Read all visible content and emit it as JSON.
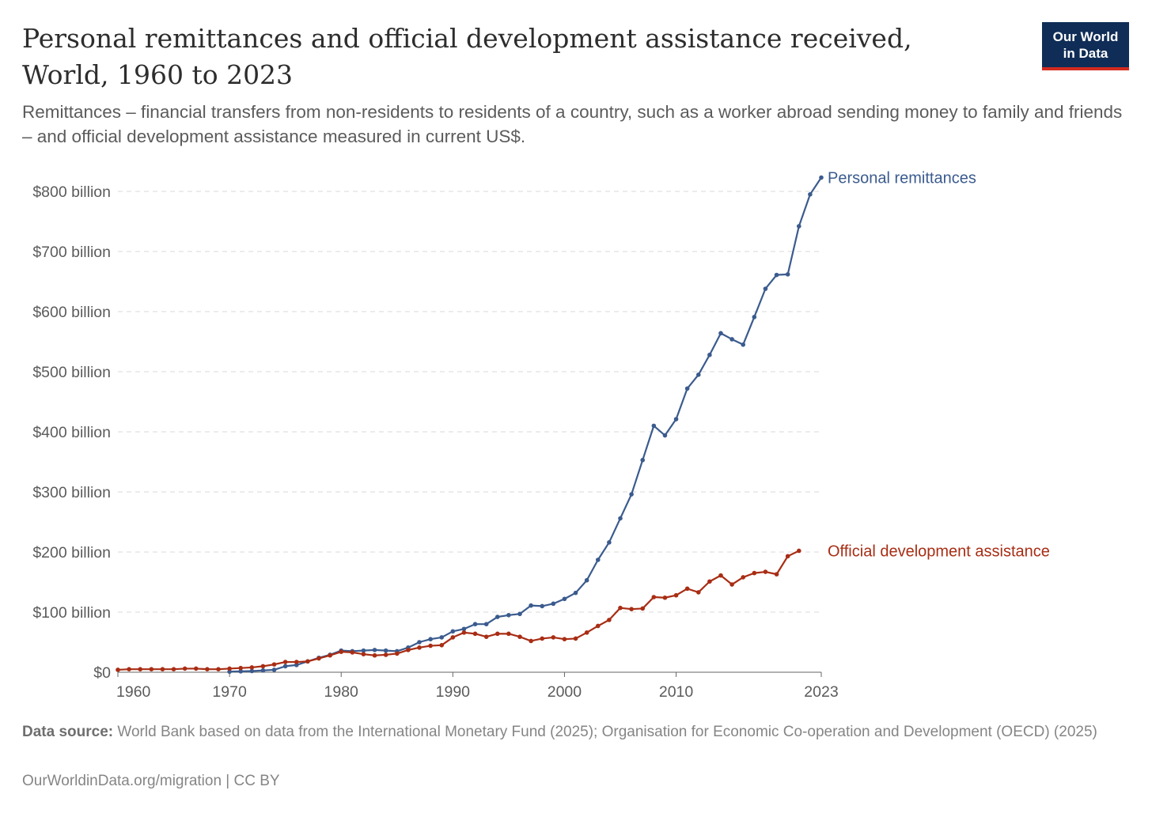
{
  "header": {
    "title": "Personal remittances and official development assistance received, World, 1960 to 2023",
    "subtitle": "Remittances – financial transfers from non-residents to residents of a country, such as a worker abroad sending money to family and friends – and official development assistance measured in current US$.",
    "logo_line1": "Our World",
    "logo_line2": "in Data"
  },
  "footer": {
    "source_label": "Data source:",
    "source_text": "World Bank based on data from the International Monetary Fund (2025); Organisation for Economic Co-operation and Development (OECD) (2025)",
    "url_license": "OurWorldinData.org/migration | CC BY"
  },
  "colors": {
    "remittances": "#3b5b8e",
    "oda": "#a82d14",
    "grid": "#d9d9d9",
    "axis": "#666666",
    "brand": "#0f2d56",
    "brand_accent": "#d42b21"
  },
  "chart_data": {
    "type": "line",
    "title": "Personal remittances and official development assistance received, World, 1960 to 2023",
    "xlabel": "",
    "ylabel": "",
    "x_ticks": [
      1960,
      1970,
      1980,
      1990,
      2000,
      2010,
      2023
    ],
    "y_ticks": [
      0,
      100,
      200,
      300,
      400,
      500,
      600,
      700,
      800
    ],
    "y_tick_labels": [
      "$0",
      "$100 billion",
      "$200 billion",
      "$300 billion",
      "$400 billion",
      "$500 billion",
      "$600 billion",
      "$700 billion",
      "$800 billion"
    ],
    "xlim": [
      1960,
      2023
    ],
    "ylim": [
      0,
      800
    ],
    "units": "billion current US$",
    "grid": "horizontal dashed",
    "legend": "inline labels at line ends",
    "series": [
      {
        "name": "Personal remittances",
        "color": "#3b5b8e",
        "x": [
          1970,
          1971,
          1972,
          1973,
          1974,
          1975,
          1976,
          1977,
          1978,
          1979,
          1980,
          1981,
          1982,
          1983,
          1984,
          1985,
          1986,
          1987,
          1988,
          1989,
          1990,
          1991,
          1992,
          1993,
          1994,
          1995,
          1996,
          1997,
          1998,
          1999,
          2000,
          2001,
          2002,
          2003,
          2004,
          2005,
          2006,
          2007,
          2008,
          2009,
          2010,
          2011,
          2012,
          2013,
          2014,
          2015,
          2016,
          2017,
          2018,
          2019,
          2020,
          2021,
          2022,
          2023
        ],
        "values": [
          1,
          1.5,
          2,
          3,
          4,
          10,
          12,
          18,
          24,
          29,
          36,
          35,
          36,
          37,
          36,
          35,
          41,
          50,
          55,
          58,
          68,
          72,
          80,
          80,
          92,
          95,
          97,
          111,
          110,
          114,
          122,
          132,
          153,
          187,
          216,
          256,
          296,
          353,
          410,
          394,
          421,
          472,
          495,
          528,
          564,
          554,
          545,
          591,
          638,
          661,
          662,
          742,
          795,
          823
        ]
      },
      {
        "name": "Official development assistance",
        "color": "#a82d14",
        "x": [
          1960,
          1961,
          1962,
          1963,
          1964,
          1965,
          1966,
          1967,
          1968,
          1969,
          1970,
          1971,
          1972,
          1973,
          1974,
          1975,
          1976,
          1977,
          1978,
          1979,
          1980,
          1981,
          1982,
          1983,
          1984,
          1985,
          1986,
          1987,
          1988,
          1989,
          1990,
          1991,
          1992,
          1993,
          1994,
          1995,
          1996,
          1997,
          1998,
          1999,
          2000,
          2001,
          2002,
          2003,
          2004,
          2005,
          2006,
          2007,
          2008,
          2009,
          2010,
          2011,
          2012,
          2013,
          2014,
          2015,
          2016,
          2017,
          2018,
          2019,
          2020,
          2021,
          2022
        ],
        "values": [
          4,
          5,
          5,
          5,
          5,
          5,
          6,
          6,
          5,
          5,
          6,
          7,
          8,
          10,
          13,
          17,
          17,
          18,
          23,
          28,
          34,
          33,
          30,
          28,
          29,
          31,
          37,
          41,
          44,
          45,
          58,
          66,
          64,
          59,
          64,
          64,
          59,
          52,
          56,
          58,
          55,
          56,
          66,
          77,
          87,
          107,
          105,
          106,
          125,
          124,
          128,
          139,
          133,
          151,
          161,
          146,
          158,
          165,
          167,
          163,
          193,
          202,
          null
        ]
      }
    ]
  }
}
